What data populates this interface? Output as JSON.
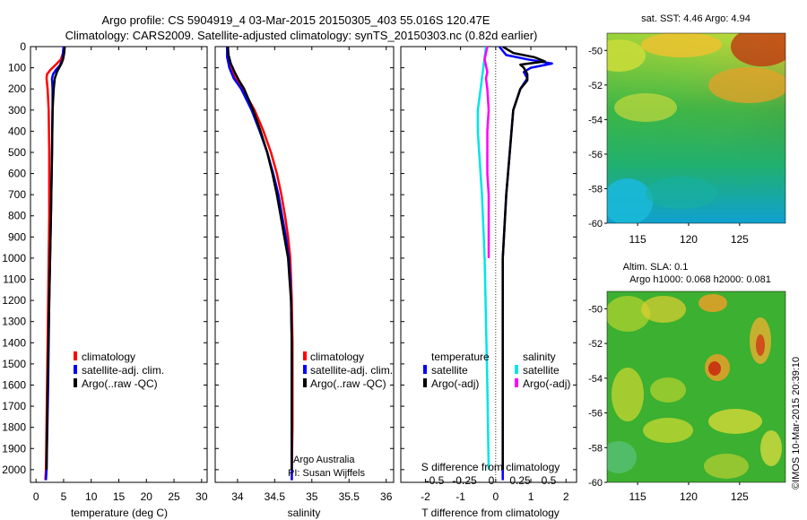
{
  "header": {
    "line1": "Argo profile: CS 5904919_4 03-Mar-2015 20150305_403 55.016S 120.47E",
    "line2": "Climatology: CARS2009. Satellite-adjusted climatology: synTS_20150303.nc (0.82d earlier)"
  },
  "colors": {
    "climatology": "#ff0000",
    "satellite": "#0000ff",
    "argo": "#000000",
    "salinity_satellite": "#00e5e5",
    "salinity_argo": "#ff00ff"
  },
  "chart_data": [
    {
      "type": "line",
      "xlabel": "temperature (deg C)",
      "xticks": [
        "0",
        "5",
        "10",
        "15",
        "20",
        "25",
        "30"
      ],
      "xlim": [
        -1,
        31
      ],
      "yticks": [
        "0",
        "100",
        "200",
        "300",
        "400",
        "500",
        "600",
        "700",
        "800",
        "900",
        "1000",
        "1100",
        "1200",
        "1300",
        "1400",
        "1500",
        "1600",
        "1700",
        "1800",
        "1900",
        "2000"
      ],
      "ylim": [
        2060,
        0
      ],
      "legend": [
        "climatology",
        "satellite-adj. clim.",
        "Argo(..raw -QC)"
      ],
      "series": [
        {
          "name": "climatology",
          "depth": [
            0,
            30,
            60,
            90,
            110,
            130,
            150,
            200,
            300,
            500,
            800,
            1200,
            1600,
            2000,
            2050
          ],
          "values": [
            5.0,
            4.9,
            4.5,
            3.4,
            2.6,
            2.0,
            1.9,
            2.1,
            2.3,
            2.4,
            2.4,
            2.2,
            2.0,
            1.8,
            1.7
          ]
        },
        {
          "name": "satellite-adj. clim.",
          "depth": [
            0,
            30,
            60,
            90,
            110,
            130,
            150,
            200,
            300,
            500,
            800,
            1200,
            1600,
            2000,
            2050
          ],
          "values": [
            5.0,
            4.9,
            4.8,
            4.3,
            3.6,
            3.1,
            2.9,
            3.0,
            3.0,
            2.9,
            2.7,
            2.4,
            2.2,
            1.9,
            1.8
          ]
        },
        {
          "name": "Argo(..raw -QC)",
          "depth": [
            0,
            30,
            60,
            80,
            100,
            120,
            150,
            200,
            300,
            500,
            800,
            1200,
            1600,
            2000
          ],
          "values": [
            5.2,
            5.1,
            4.9,
            4.6,
            4.2,
            3.8,
            3.4,
            3.2,
            3.0,
            2.9,
            2.7,
            2.4,
            2.1,
            1.9
          ]
        }
      ]
    },
    {
      "type": "line",
      "xlabel": "salinity",
      "xticks": [
        "34",
        "34.5",
        "35",
        "35.5",
        "36"
      ],
      "xlim": [
        33.7,
        36.1
      ],
      "ylim": [
        2060,
        0
      ],
      "legend": [
        "climatology",
        "satellite-adj. clim.",
        "Argo(..raw -QC)"
      ],
      "annotation": [
        "Argo Australia",
        "PI: Susan Wijffels"
      ],
      "series": [
        {
          "name": "climatology",
          "depth": [
            0,
            50,
            100,
            150,
            200,
            300,
            400,
            500,
            600,
            700,
            800,
            900,
            1000,
            1100,
            1200,
            1400,
            1600,
            1800,
            2000,
            2050
          ],
          "values": [
            33.87,
            33.87,
            33.9,
            33.97,
            34.07,
            34.23,
            34.35,
            34.45,
            34.53,
            34.59,
            34.64,
            34.68,
            34.71,
            34.72,
            34.73,
            34.74,
            34.74,
            34.74,
            34.73,
            34.73
          ]
        },
        {
          "name": "satellite-adj. clim.",
          "depth": [
            0,
            50,
            100,
            150,
            200,
            300,
            400,
            500,
            600,
            700,
            800,
            900,
            1000,
            1100,
            1200,
            1400,
            1600,
            1800,
            2000,
            2050
          ],
          "values": [
            33.86,
            33.86,
            33.89,
            33.95,
            34.05,
            34.19,
            34.3,
            34.4,
            34.48,
            34.55,
            34.6,
            34.65,
            34.69,
            34.71,
            34.72,
            34.73,
            34.73,
            34.73,
            34.73,
            34.73
          ]
        },
        {
          "name": "Argo(..raw -QC)",
          "depth": [
            0,
            40,
            80,
            120,
            160,
            200,
            250,
            300,
            400,
            500,
            600,
            700,
            800,
            900,
            1000,
            1100,
            1200,
            1400,
            1600,
            1800,
            2000
          ],
          "values": [
            33.87,
            33.88,
            33.91,
            33.96,
            34.02,
            34.09,
            34.15,
            34.21,
            34.31,
            34.4,
            34.47,
            34.53,
            34.58,
            34.63,
            34.68,
            34.7,
            34.72,
            34.73,
            34.73,
            34.73,
            34.73
          ]
        }
      ]
    },
    {
      "type": "line",
      "xlabel": "T difference from climatology",
      "xlabel_top": "S difference from climatology",
      "xticks": [
        "-2",
        "-1",
        "0",
        "1",
        "2"
      ],
      "xticks_top": [
        "-0.5",
        "-0.25",
        "0",
        "0.25",
        "0.5"
      ],
      "xlim": [
        -2.7,
        2.3
      ],
      "ylim": [
        2060,
        0
      ],
      "legend_temperature": {
        "title": "temperature",
        "items": [
          "satellite",
          "Argo(-adj)"
        ]
      },
      "legend_salinity": {
        "title": "salinity",
        "items": [
          "satellite",
          "Argo(-adj)"
        ]
      },
      "series": [
        {
          "name": "satellite",
          "group": "temperature",
          "depth": [
            0,
            40,
            60,
            80,
            100,
            120,
            150,
            200,
            300,
            500,
            700,
            1000,
            1300,
            1600,
            2000,
            2050
          ],
          "values": [
            0.1,
            0.3,
            0.9,
            1.6,
            1.0,
            0.8,
            0.9,
            0.7,
            0.5,
            0.4,
            0.3,
            0.2,
            0.2,
            0.2,
            0.2,
            0.2
          ]
        },
        {
          "name": "Argo(-adj)",
          "group": "temperature",
          "depth": [
            0,
            30,
            50,
            70,
            85,
            100,
            130,
            160,
            200,
            300,
            500,
            700,
            1000,
            1300,
            1600,
            2000
          ],
          "values": [
            0.2,
            0.5,
            1.1,
            1.4,
            0.7,
            0.8,
            0.9,
            0.9,
            0.7,
            0.5,
            0.4,
            0.3,
            0.2,
            0.2,
            0.2,
            0.2
          ]
        },
        {
          "name": "satellite",
          "group": "salinity",
          "depth": [
            0,
            50,
            100,
            150,
            200,
            300,
            400,
            500,
            700,
            1000,
            1300,
            1600,
            2000
          ],
          "values": [
            -0.02,
            -0.03,
            -0.04,
            -0.05,
            -0.06,
            -0.08,
            -0.08,
            -0.07,
            -0.05,
            -0.03,
            -0.02,
            -0.01,
            0.0
          ]
        },
        {
          "name": "Argo(-adj)",
          "group": "salinity",
          "depth": [
            0,
            30,
            60,
            90,
            120,
            150,
            200,
            300,
            400,
            500,
            600,
            700,
            800,
            900,
            1000
          ],
          "values": [
            -0.01,
            -0.02,
            -0.03,
            -0.02,
            -0.01,
            -0.02,
            -0.01,
            0.0,
            -0.01,
            -0.01,
            -0.01,
            0.0,
            0.0,
            0.0,
            0.0
          ]
        }
      ]
    }
  ],
  "maps": {
    "sst": {
      "title": "sat. SST: 4.46  Argo: 4.94",
      "yticks": [
        "-50",
        "-52",
        "-54",
        "-56",
        "-58",
        "-60"
      ],
      "xticks": [
        "115",
        "120",
        "125"
      ],
      "xlim": [
        112,
        129.5
      ],
      "ylim": [
        -60,
        -49
      ]
    },
    "sla": {
      "title_line1": "Altim. SLA: 0.1",
      "title_line2": "Argo h1000: 0.068 h2000: 0.081",
      "yticks": [
        "-50",
        "-52",
        "-54",
        "-56",
        "-58",
        "-60"
      ],
      "xticks": [
        "115",
        "120",
        "125"
      ],
      "xlim": [
        112,
        129.5
      ],
      "ylim": [
        -60,
        -49
      ]
    }
  },
  "credit": "©IMOS 10-Mar-2015 20:39:10"
}
